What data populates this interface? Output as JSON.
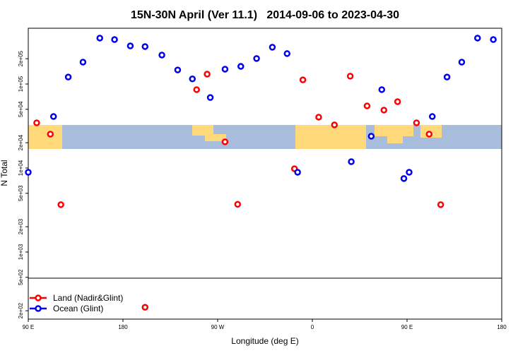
{
  "chart_data": {
    "type": "scatter",
    "title": "15N-30N April (Ver 11.1)   2014-09-06 to 2023-04-30",
    "xlabel": "Longitude (deg E)",
    "ylabel": "N Total",
    "log_y": true,
    "legend": "bottomleft",
    "xlim": [
      90,
      540
    ],
    "xticks": [
      {
        "value": 90,
        "label": "90 E"
      },
      180,
      {
        "value": 270,
        "label": "90 W"
      },
      {
        "value": 360,
        "label": "0"
      },
      {
        "value": 450,
        "label": "90 E"
      },
      {
        "value": 540,
        "label": "180"
      }
    ],
    "ylim": [
      159,
      461000
    ],
    "yticks": [
      {
        "value": 200000,
        "label": "2e+05"
      },
      {
        "value": 100000,
        "label": "1e+05"
      },
      {
        "value": 50000,
        "label": "5e+04"
      },
      {
        "value": 20000,
        "label": "2e+04"
      },
      {
        "value": 10000,
        "label": "1e+04"
      },
      {
        "value": 5000,
        "label": "5e+03"
      },
      {
        "value": 2000,
        "label": "2e+03"
      },
      {
        "value": 1000,
        "label": "1e+03"
      },
      {
        "value": 500,
        "label": "5e+02"
      },
      {
        "value": 200,
        "label": "2e+02"
      }
    ],
    "series": [
      {
        "name": "Land (Nadir&Glint)",
        "color": "#ff0000",
        "x": [
          98,
          111,
          121,
          201,
          250,
          260,
          277,
          289,
          343,
          351,
          366,
          381,
          396,
          412,
          428,
          441,
          459,
          471,
          482
        ],
        "values": [
          34500,
          25300,
          3660,
          220,
          85700,
          131000,
          20500,
          3700,
          9800,
          112000,
          40300,
          32600,
          124000,
          54800,
          48900,
          61600,
          34500,
          25300,
          3660
        ]
      },
      {
        "name": "Ocean (Glint)",
        "color": "#0000ee",
        "x": [
          90,
          114,
          128,
          142,
          158,
          172,
          187,
          201,
          217,
          232,
          246,
          263,
          277,
          292,
          307,
          322,
          336,
          346,
          397,
          416,
          426,
          447,
          452,
          474,
          488,
          502,
          517,
          532
        ],
        "values": [
          8900,
          41000,
          121000,
          182000,
          352000,
          338000,
          284000,
          279000,
          221000,
          147000,
          115000,
          69000,
          150000,
          162000,
          201000,
          274000,
          230000,
          8900,
          11900,
          23900,
          85700,
          7500,
          8900,
          41000,
          121000,
          182000,
          352000,
          338000
        ]
      }
    ]
  }
}
